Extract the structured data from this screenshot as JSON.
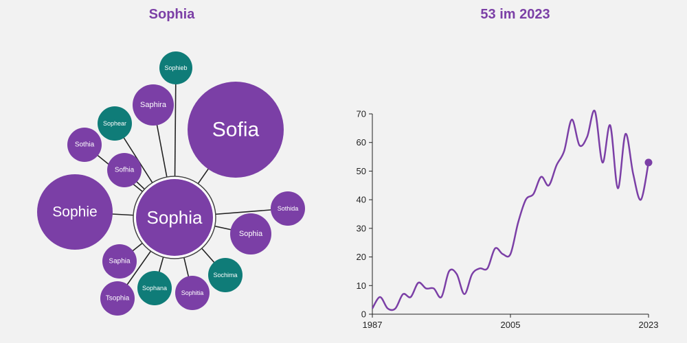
{
  "colors": {
    "purple": "#7b3fa6",
    "teal": "#0f7c78",
    "axis": "#222222",
    "background": "#f2f2f2"
  },
  "network": {
    "title": "Sophia",
    "center": {
      "label": "Sophia",
      "color": "purple"
    },
    "nodes": [
      {
        "label": "Sofia",
        "color": "purple"
      },
      {
        "label": "Sophie",
        "color": "purple"
      },
      {
        "label": "Sophieb",
        "color": "teal"
      },
      {
        "label": "Saphira",
        "color": "purple"
      },
      {
        "label": "Sophear",
        "color": "teal"
      },
      {
        "label": "Sothia",
        "color": "purple"
      },
      {
        "label": "Sofhia",
        "color": "purple"
      },
      {
        "label": "Sothida",
        "color": "purple"
      },
      {
        "label": "Sophia",
        "color": "purple"
      },
      {
        "label": "Sochima",
        "color": "teal"
      },
      {
        "label": "Sophitia",
        "color": "purple"
      },
      {
        "label": "Sophana",
        "color": "teal"
      },
      {
        "label": "Tsophia",
        "color": "purple"
      },
      {
        "label": "Saphia",
        "color": "purple"
      }
    ]
  },
  "chart_data": {
    "type": "line",
    "title": "53 im 2023",
    "xlabel": "",
    "ylabel": "",
    "xlim": [
      1987,
      2023
    ],
    "ylim": [
      0,
      70
    ],
    "x_ticks": [
      1987,
      2005,
      2023
    ],
    "y_ticks": [
      0,
      10,
      20,
      30,
      40,
      50,
      60,
      70
    ],
    "grid": false,
    "series": [
      {
        "x": [
          1987,
          1988,
          1989,
          1990,
          1991,
          1992,
          1993,
          1994,
          1995,
          1996,
          1997,
          1998,
          1999,
          2000,
          2001,
          2002,
          2003,
          2004,
          2005,
          2006,
          2007,
          2008,
          2009,
          2010,
          2011,
          2012,
          2013,
          2014,
          2015,
          2016,
          2017,
          2018,
          2019,
          2020,
          2021,
          2022,
          2023
        ],
        "y": [
          2,
          6,
          2,
          2,
          7,
          6,
          11,
          9,
          9,
          6,
          15,
          14,
          7,
          14,
          16,
          16,
          23,
          21,
          21,
          32,
          40,
          42,
          48,
          45,
          52,
          57,
          68,
          59,
          62,
          71,
          53,
          66,
          44,
          63,
          49,
          40,
          53
        ]
      }
    ],
    "last_point": {
      "x": 2023,
      "y": 53
    }
  }
}
